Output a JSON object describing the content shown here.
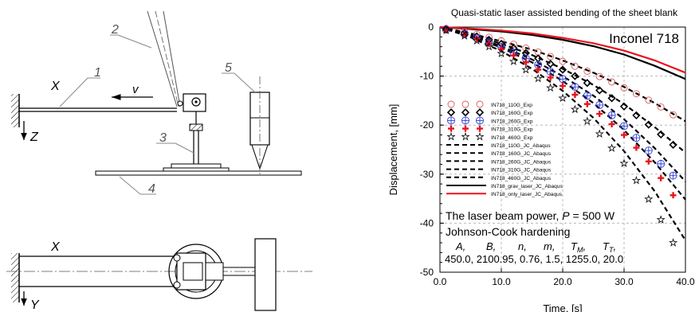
{
  "schematic": {
    "labels": {
      "n1": "1",
      "n2": "2",
      "n3": "3",
      "n4": "4",
      "n5": "5",
      "x_top": "X",
      "z": "Z",
      "v": "v",
      "x_bottom": "X",
      "y": "Y"
    }
  },
  "chart_data": {
    "type": "scatter",
    "title": "Quasi-static laser assisted bending of the sheet blank",
    "material": "Inconel 718",
    "xlabel": "Time, [s]",
    "ylabel": "Displacement, [mm]",
    "xlim": [
      0,
      40
    ],
    "ylim": [
      -50,
      0
    ],
    "xticks": [
      "0.0",
      "10.0",
      "20.0",
      "30.0",
      "40.0"
    ],
    "yticks": [
      "0",
      "-10",
      "-20",
      "-30",
      "-40",
      "-50"
    ],
    "grid": true,
    "legend_position": "center-left",
    "series": [
      {
        "name": "IN718_110G_Exp",
        "kind": "exp",
        "marker": "circle-open",
        "color": "#e05a5a",
        "x": [
          1,
          4,
          6,
          8,
          10,
          12,
          14,
          16,
          18,
          20,
          22,
          24,
          26,
          28,
          30,
          32,
          34,
          36,
          38
        ],
        "y": [
          -0.3,
          -1.0,
          -1.5,
          -2.1,
          -2.8,
          -3.5,
          -4.3,
          -5.1,
          -6.0,
          -7.0,
          -8.0,
          -9.0,
          -10.1,
          -11.2,
          -12.4,
          -13.6,
          -14.9,
          -16.3,
          -17.9
        ]
      },
      {
        "name": "IN718_160G_Exp",
        "kind": "exp",
        "marker": "diamond-open",
        "color": "#000000",
        "x": [
          1,
          4,
          6,
          8,
          10,
          12,
          14,
          16,
          18,
          20,
          22,
          24,
          26,
          28,
          30,
          32,
          34,
          36,
          38
        ],
        "y": [
          -0.4,
          -1.2,
          -1.9,
          -2.6,
          -3.4,
          -4.3,
          -5.3,
          -6.4,
          -7.5,
          -8.7,
          -10.0,
          -11.4,
          -12.9,
          -14.5,
          -16.2,
          -18.0,
          -19.9,
          -21.9,
          -24.0
        ]
      },
      {
        "name": "IN718_260G_Exp",
        "kind": "exp",
        "marker": "circle-plus",
        "color": "#2d3bd6",
        "x": [
          1,
          4,
          6,
          8,
          10,
          12,
          14,
          16,
          18,
          20,
          22,
          24,
          26,
          28,
          30,
          32,
          34,
          36,
          38
        ],
        "y": [
          -0.5,
          -1.4,
          -2.2,
          -3.1,
          -4.1,
          -5.2,
          -6.4,
          -7.7,
          -9.1,
          -10.6,
          -12.2,
          -14.0,
          -15.9,
          -18.0,
          -20.2,
          -22.6,
          -25.2,
          -27.9,
          -30.3
        ]
      },
      {
        "name": "IN718_310G_Exp",
        "kind": "exp",
        "marker": "plus-bold",
        "color": "#e8141e",
        "x": [
          1,
          4,
          6,
          8,
          10,
          12,
          14,
          16,
          18,
          20,
          22,
          24,
          26,
          28,
          30,
          32,
          34,
          36,
          38
        ],
        "y": [
          -0.6,
          -1.5,
          -2.4,
          -3.4,
          -4.5,
          -5.8,
          -7.2,
          -8.7,
          -10.3,
          -12.0,
          -13.8,
          -15.7,
          -17.7,
          -19.8,
          -22.0,
          -24.6,
          -27.4,
          -30.8,
          -34.3
        ]
      },
      {
        "name": "IN718_460G_Exp",
        "kind": "exp",
        "marker": "star-open",
        "color": "#000000",
        "x": [
          1,
          4,
          6,
          8,
          10,
          12,
          14,
          16,
          18,
          20,
          22,
          24,
          26,
          28,
          30,
          32,
          34,
          36,
          38
        ],
        "y": [
          -0.7,
          -1.8,
          -2.8,
          -4.0,
          -5.4,
          -7.0,
          -8.7,
          -10.5,
          -12.4,
          -14.5,
          -16.8,
          -19.2,
          -21.8,
          -24.7,
          -27.8,
          -31.3,
          -35.1,
          -39.3,
          -44.0
        ]
      },
      {
        "name": "IN718_110G_JC_Abaqus",
        "kind": "sim",
        "style": "dashed",
        "color": "#000000",
        "x": [
          0,
          5,
          10,
          15,
          20,
          25,
          30,
          35,
          40
        ],
        "y": [
          0,
          -1.3,
          -2.9,
          -4.6,
          -6.8,
          -9.3,
          -12.2,
          -15.5,
          -19.2
        ]
      },
      {
        "name": "IN718_160G_JC_Abaqus",
        "kind": "sim",
        "style": "dashed",
        "color": "#000000",
        "x": [
          0,
          5,
          10,
          15,
          20,
          25,
          30,
          35,
          40
        ],
        "y": [
          0,
          -1.5,
          -3.4,
          -5.7,
          -8.5,
          -11.8,
          -15.7,
          -20.4,
          -25.6
        ]
      },
      {
        "name": "IN718_260G_JC_Abaqus",
        "kind": "sim",
        "style": "dashed",
        "color": "#000000",
        "x": [
          0,
          5,
          10,
          15,
          20,
          25,
          30,
          35,
          40
        ],
        "y": [
          0,
          -1.7,
          -3.9,
          -6.6,
          -10.0,
          -14.0,
          -18.8,
          -24.7,
          -31.5
        ]
      },
      {
        "name": "IN718_310G_JC_Abaqus",
        "kind": "sim",
        "style": "dashed",
        "color": "#000000",
        "x": [
          0,
          5,
          10,
          15,
          20,
          25,
          30,
          35,
          40
        ],
        "y": [
          0,
          -1.8,
          -4.2,
          -7.2,
          -11.0,
          -15.5,
          -21.0,
          -27.6,
          -35.2
        ]
      },
      {
        "name": "IN718_460G_JC_Abaqus",
        "kind": "sim",
        "style": "dashed",
        "color": "#000000",
        "x": [
          0,
          5,
          10,
          15,
          20,
          25,
          30,
          35,
          40
        ],
        "y": [
          0,
          -2.1,
          -4.9,
          -8.5,
          -13.0,
          -18.5,
          -25.3,
          -33.5,
          -43.5
        ]
      },
      {
        "name": "IN718_grav_laser_JC_Abaqus",
        "kind": "sim",
        "style": "solid",
        "color": "#000000",
        "x": [
          0,
          5,
          10,
          15,
          20,
          25,
          30,
          35,
          40
        ],
        "y": [
          0,
          -0.4,
          -0.9,
          -1.6,
          -2.6,
          -3.9,
          -5.6,
          -7.9,
          -10.6
        ]
      },
      {
        "name": "IN718_only_laser_JC_Abaqus",
        "kind": "sim",
        "style": "solid",
        "color": "#e8141e",
        "x": [
          0,
          5,
          10,
          15,
          20,
          25,
          30,
          35,
          40
        ],
        "y": [
          0,
          -0.3,
          -0.7,
          -1.3,
          -2.2,
          -3.3,
          -4.8,
          -6.8,
          -9.3
        ]
      }
    ],
    "annotations": {
      "power_prefix": "The laser beam power, ",
      "power_symbol": "P",
      "power_value": " = 500 W",
      "hardening": "Johnson-Cook hardening",
      "param_names": [
        "A,",
        "B,",
        "n,",
        "m,",
        "T",
        "T"
      ],
      "param_subs": [
        "",
        "",
        "",
        "",
        "M",
        "T"
      ],
      "param_values": "450.0, 2100.95, 0.76, 1.5, 1255.0, 20.0"
    }
  }
}
